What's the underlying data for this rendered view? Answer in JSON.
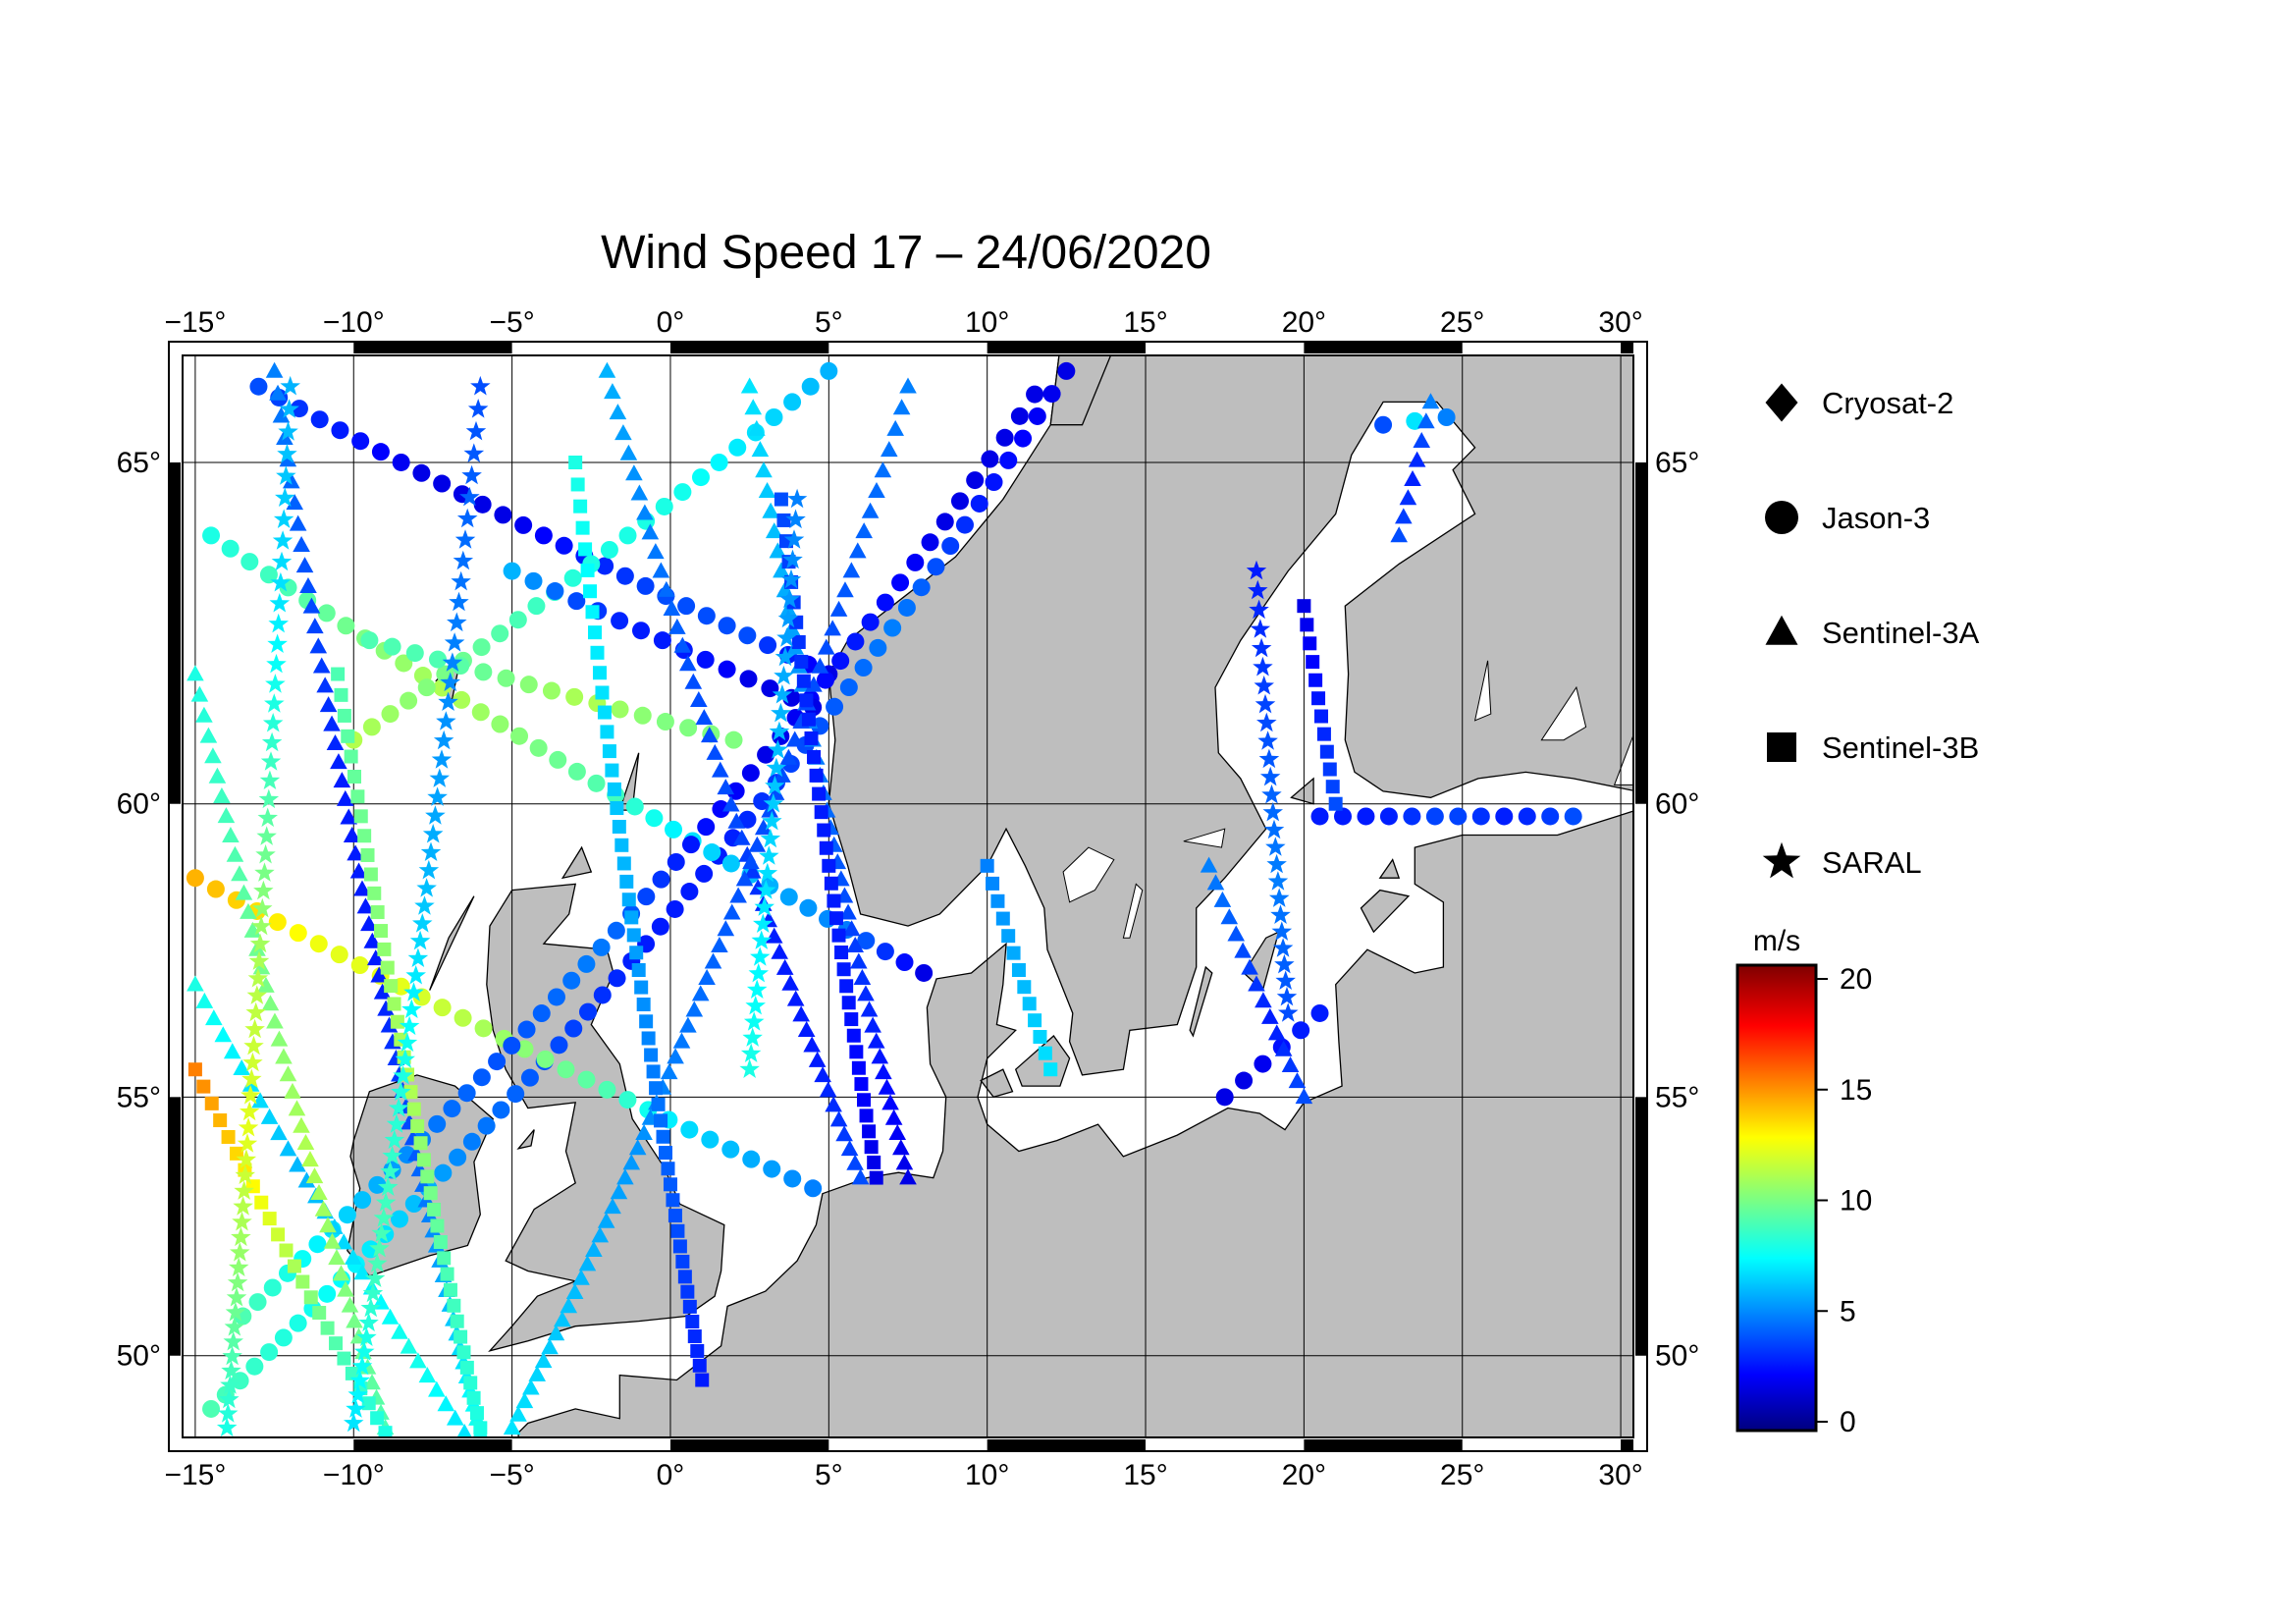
{
  "title": "Wind Speed 17 – 24/06/2020",
  "map": {
    "projection": "mercator",
    "lon_range": [
      -15.4,
      30.4
    ],
    "lat_range": [
      48.3,
      66.4
    ],
    "land_color": "#bebebe",
    "ocean_color": "#ffffff",
    "grid": true,
    "lon_ticks": [
      -15,
      -10,
      -5,
      0,
      5,
      10,
      15,
      20,
      25,
      30
    ],
    "lat_ticks": [
      50,
      55,
      60,
      65
    ],
    "lon_tick_labels": [
      "−15°",
      "−10°",
      "−5°",
      "0°",
      "5°",
      "10°",
      "15°",
      "20°",
      "25°",
      "30°"
    ],
    "lat_tick_labels": [
      "50°",
      "55°",
      "60°",
      "65°"
    ]
  },
  "legend": {
    "items": [
      {
        "label": "Cryosat-2",
        "marker": "diamond"
      },
      {
        "label": "Jason-3",
        "marker": "circle"
      },
      {
        "label": "Sentinel-3A",
        "marker": "triangle"
      },
      {
        "label": "Sentinel-3B",
        "marker": "square"
      },
      {
        "label": "SARAL",
        "marker": "star"
      }
    ]
  },
  "colorbar": {
    "unit": "m/s",
    "min": 0,
    "max": 20,
    "ticks": [
      0,
      5,
      10,
      15,
      20
    ],
    "tick_labels": [
      "0",
      "5",
      "10",
      "15",
      "20"
    ],
    "colormap": "jet"
  },
  "chart_data": {
    "type": "scatter",
    "title": "Wind Speed 17 – 24/06/2020",
    "xlabel": "",
    "ylabel": "",
    "xlim": [
      -15.4,
      30.4
    ],
    "ylim": [
      48.3,
      66.4
    ],
    "value_unit": "m/s",
    "series": [
      {
        "name": "Jason-3",
        "marker": "circle",
        "tracks": [
          {
            "start": [
              -14.5,
              48.9
            ],
            "end": [
              12.5,
              66.2
            ],
            "speed_profile": [
              9,
              8,
              7,
              5,
              4,
              3,
              3,
              4,
              5,
              3,
              2
            ]
          },
          {
            "start": [
              -15.0,
              58.8
            ],
            "end": [
              4.5,
              53.3
            ],
            "speed_profile": [
              14,
              13,
              12,
              12,
              11,
              10,
              9,
              7,
              6,
              5
            ]
          },
          {
            "start": [
              -13.0,
              66.0
            ],
            "end": [
              5.0,
              62.0
            ],
            "speed_profile": [
              4,
              3,
              2,
              2,
              3,
              4,
              4,
              2
            ]
          },
          {
            "start": [
              -14.5,
              64.0
            ],
            "end": [
              8.0,
              57.2
            ],
            "speed_profile": [
              8,
              9,
              10,
              11,
              10,
              9,
              7,
              6,
              5,
              2
            ]
          },
          {
            "start": [
              -13.5,
              50.8
            ],
            "end": [
              11.5,
              65.9
            ],
            "speed_profile": [
              9,
              7,
              5,
              4,
              5,
              3,
              2,
              3,
              2,
              2
            ]
          },
          {
            "start": [
              -10.0,
              61.0
            ],
            "end": [
              5.0,
              66.2
            ],
            "speed_profile": [
              11,
              10,
              9,
              8,
              8,
              7,
              6
            ]
          },
          {
            "start": [
              -5.0,
              63.5
            ],
            "end": [
              4.5,
              61.5
            ],
            "speed_profile": [
              6,
              4,
              3,
              3,
              2,
              2
            ]
          },
          {
            "start": [
              -9.5,
              62.5
            ],
            "end": [
              2.0,
              61.0
            ],
            "speed_profile": [
              9,
              9,
              10,
              11,
              10,
              10
            ]
          },
          {
            "start": [
              17.5,
              55.0
            ],
            "end": [
              20.5,
              56.5
            ],
            "speed_profile": [
              2,
              2,
              3,
              3
            ]
          },
          {
            "start": [
              22.5,
              65.5
            ],
            "end": [
              24.5,
              65.6
            ],
            "speed_profile": [
              4,
              6,
              8,
              5
            ]
          },
          {
            "start": [
              20.5,
              59.8
            ],
            "end": [
              28.5,
              59.8
            ],
            "speed_profile": [
              3,
              3,
              4,
              3,
              4
            ]
          }
        ]
      },
      {
        "name": "Sentinel-3A",
        "marker": "triangle",
        "tracks": [
          {
            "start": [
              -15.0,
              57.0
            ],
            "end": [
              -6.5,
              48.4
            ],
            "speed_profile": [
              8,
              7,
              6,
              7,
              8,
              7
            ]
          },
          {
            "start": [
              -12.5,
              66.2
            ],
            "end": [
              -6.0,
              48.4
            ],
            "speed_profile": [
              5,
              4,
              3,
              3,
              4,
              6,
              8
            ]
          },
          {
            "start": [
              -2.0,
              66.2
            ],
            "end": [
              6.0,
              53.5
            ],
            "speed_profile": [
              6,
              5,
              4,
              4,
              3,
              3,
              4
            ]
          },
          {
            "start": [
              2.5,
              66.0
            ],
            "end": [
              7.5,
              53.5
            ],
            "speed_profile": [
              7,
              6,
              5,
              4,
              3,
              2
            ]
          },
          {
            "start": [
              7.5,
              66.0
            ],
            "end": [
              -5.0,
              48.5
            ],
            "speed_profile": [
              5,
              4,
              4,
              5,
              6,
              7
            ]
          },
          {
            "start": [
              -15.0,
              62.0
            ],
            "end": [
              -9.0,
              48.5
            ],
            "speed_profile": [
              8,
              9,
              10,
              11,
              10,
              9
            ]
          },
          {
            "start": [
              17.0,
              59.0
            ],
            "end": [
              20.0,
              55.0
            ],
            "speed_profile": [
              5,
              4,
              3,
              4
            ]
          },
          {
            "start": [
              23.0,
              64.0
            ],
            "end": [
              24.0,
              65.8
            ],
            "speed_profile": [
              4,
              3,
              5
            ]
          }
        ]
      },
      {
        "name": "Sentinel-3B",
        "marker": "square",
        "tracks": [
          {
            "start": [
              -15.0,
              55.5
            ],
            "end": [
              -9.0,
              48.4
            ],
            "speed_profile": [
              15,
              13,
              11,
              9,
              8
            ]
          },
          {
            "start": [
              -10.5,
              62.0
            ],
            "end": [
              -6.0,
              48.5
            ],
            "speed_profile": [
              9,
              10,
              11,
              9,
              8
            ]
          },
          {
            "start": [
              -3.0,
              65.0
            ],
            "end": [
              1.0,
              49.5
            ],
            "speed_profile": [
              8,
              7,
              6,
              5,
              4,
              3
            ]
          },
          {
            "start": [
              3.5,
              64.5
            ],
            "end": [
              6.5,
              53.5
            ],
            "speed_profile": [
              4,
              3,
              3,
              2
            ]
          },
          {
            "start": [
              10.0,
              59.0
            ],
            "end": [
              12.0,
              55.5
            ],
            "speed_profile": [
              5,
              6,
              7
            ]
          },
          {
            "start": [
              20.0,
              63.0
            ],
            "end": [
              21.0,
              60.0
            ],
            "speed_profile": [
              2,
              3,
              4
            ]
          }
        ]
      },
      {
        "name": "SARAL",
        "marker": "star",
        "tracks": [
          {
            "start": [
              -12.0,
              66.0
            ],
            "end": [
              -14.0,
              48.5
            ],
            "speed_profile": [
              6,
              7,
              9,
              11,
              12,
              10,
              8
            ]
          },
          {
            "start": [
              -6.0,
              66.0
            ],
            "end": [
              -10.0,
              48.6
            ],
            "speed_profile": [
              4,
              5,
              6,
              8,
              9,
              7
            ]
          },
          {
            "start": [
              4.0,
              64.5
            ],
            "end": [
              2.5,
              55.5
            ],
            "speed_profile": [
              5,
              6,
              7,
              8
            ]
          },
          {
            "start": [
              18.5,
              63.5
            ],
            "end": [
              19.5,
              56.5
            ],
            "speed_profile": [
              3,
              4,
              5,
              4
            ]
          }
        ]
      }
    ]
  }
}
